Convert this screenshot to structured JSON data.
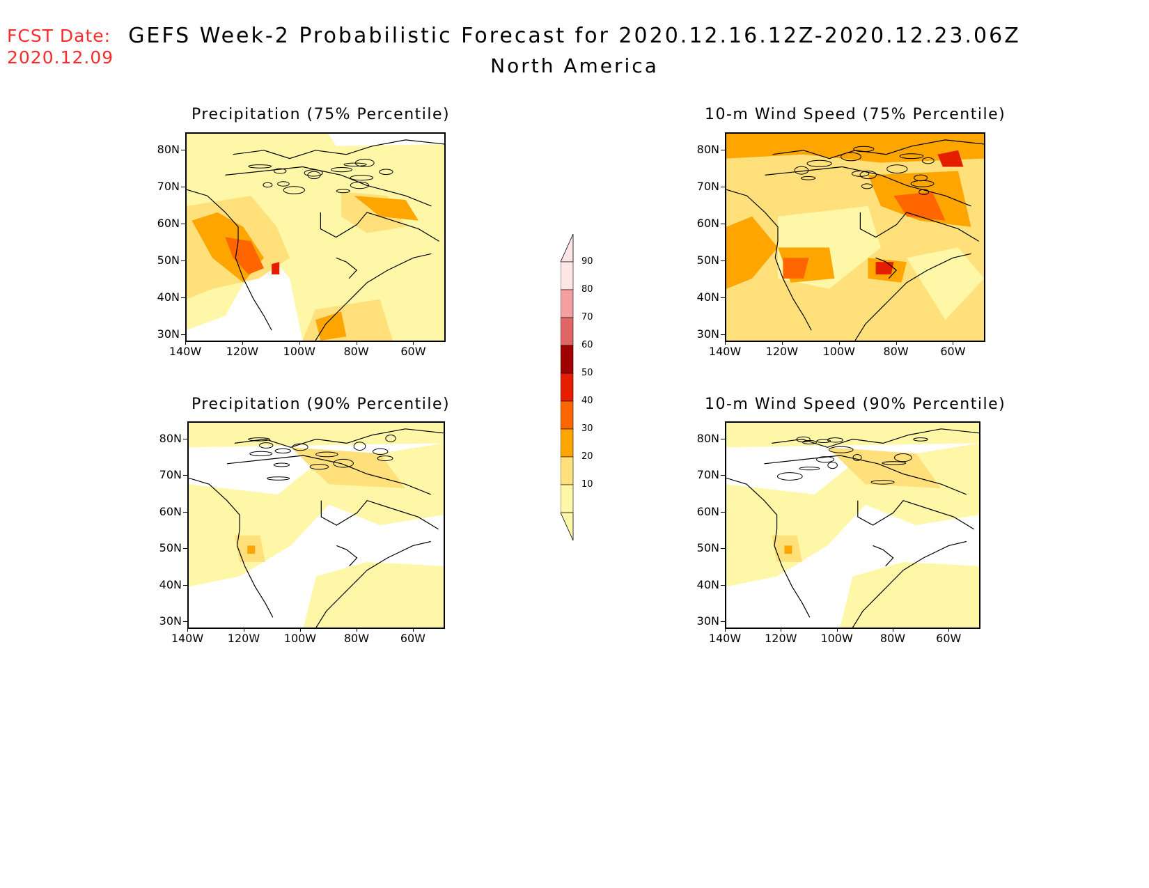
{
  "header": {
    "fcst_label": "FCST Date:",
    "fcst_date": "2020.12.09",
    "title": "GEFS Week-2 Probabilistic Forecast for 2020.12.16.12Z-2020.12.23.06Z",
    "subtitle": "North America"
  },
  "axes": {
    "lat_labels": [
      "80N",
      "70N",
      "60N",
      "50N",
      "40N",
      "30N"
    ],
    "lon_labels": [
      "140W",
      "120W",
      "100W",
      "80W",
      "60W"
    ]
  },
  "panels": [
    {
      "id": "precip75",
      "title": "Precipitation (75% Percentile)",
      "intensity": "medium"
    },
    {
      "id": "wind75",
      "title": "10-m Wind Speed (75% Percentile)",
      "intensity": "high"
    },
    {
      "id": "precip90",
      "title": "Precipitation (90% Percentile)",
      "intensity": "low"
    },
    {
      "id": "wind90",
      "title": "10-m Wind Speed (90% Percentile)",
      "intensity": "low"
    }
  ],
  "colorbar": {
    "levels": [
      "90",
      "80",
      "70",
      "60",
      "50",
      "40",
      "30",
      "20",
      "10"
    ],
    "colors": {
      "c10": "#fff7a8",
      "c20": "#ffe07a",
      "c30": "#ffa500",
      "c40": "#ff6600",
      "c50": "#e61e00",
      "c60": "#a00000",
      "c70": "#e06666",
      "c80": "#f4a0a0",
      "c90": "#ffe6e6"
    }
  }
}
